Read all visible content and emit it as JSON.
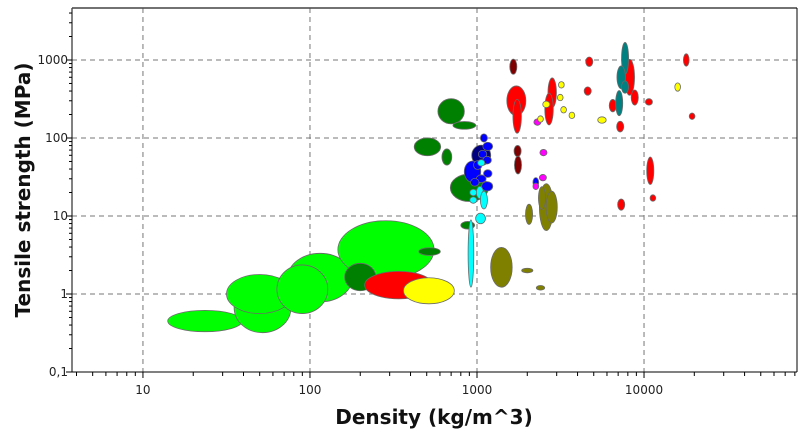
{
  "chart_data": {
    "type": "scatter",
    "subtype": "ashby-bubble",
    "title": "",
    "xlabel": "Density (kg/m^3)",
    "ylabel": "Tensile strength (MPa)",
    "xscale": "log",
    "yscale": "log",
    "xlim": [
      3.76,
      82400
    ],
    "ylim": [
      0.1,
      4640
    ],
    "x_ticks": [
      10,
      100,
      1000,
      10000
    ],
    "x_tick_labels": [
      "10",
      "100",
      "1000",
      "10000"
    ],
    "y_ticks": [
      0.1,
      1,
      10,
      100,
      1000
    ],
    "y_tick_labels": [
      "0,1",
      "1",
      "10",
      "100",
      "1000"
    ],
    "grid": true,
    "legend": "none",
    "colors": {
      "foam_light": "#00ff00",
      "natural_dark": "#008000",
      "polymer_blue": "#0000ff",
      "navy": "#000080",
      "cyan": "#00ffff",
      "maroon": "#800000",
      "red": "#ff0000",
      "yellow": "#ffff00",
      "magenta": "#ff00ff",
      "olive": "#808000",
      "teal": "#008080"
    },
    "bubbles": [
      {
        "x": 23.5,
        "y": 0.45,
        "xf": 1.67,
        "yf": 1.37,
        "color": "#00ff00"
      },
      {
        "x": 52,
        "y": 0.67,
        "xf": 1.48,
        "yf": 2.1,
        "color": "#00ff00"
      },
      {
        "x": 50,
        "y": 1.0,
        "xf": 1.58,
        "yf": 1.78,
        "color": "#00ff00"
      },
      {
        "x": 115,
        "y": 1.62,
        "xf": 1.56,
        "yf": 2.05,
        "color": "#00ff00"
      },
      {
        "x": 90,
        "y": 1.15,
        "xf": 1.42,
        "yf": 2.05,
        "color": "#00ff00"
      },
      {
        "x": 285,
        "y": 3.7,
        "xf": 1.94,
        "yf": 2.35,
        "color": "#00ff00"
      },
      {
        "x": 200,
        "y": 1.65,
        "xf": 1.24,
        "yf": 1.5,
        "color": "#008000"
      },
      {
        "x": 520,
        "y": 3.5,
        "xf": 1.16,
        "yf": 1.12,
        "color": "#008000"
      },
      {
        "x": 340,
        "y": 1.3,
        "xf": 1.6,
        "yf": 1.5,
        "color": "#ff0000"
      },
      {
        "x": 515,
        "y": 1.1,
        "xf": 1.42,
        "yf": 1.47,
        "color": "#ffff00"
      },
      {
        "x": 700,
        "y": 220,
        "xf": 1.2,
        "yf": 1.45,
        "color": "#008000"
      },
      {
        "x": 840,
        "y": 145,
        "xf": 1.17,
        "yf": 1.12,
        "color": "#008000"
      },
      {
        "x": 505,
        "y": 77,
        "xf": 1.2,
        "yf": 1.3,
        "color": "#008000"
      },
      {
        "x": 660,
        "y": 57,
        "xf": 1.07,
        "yf": 1.27,
        "color": "#008000"
      },
      {
        "x": 900,
        "y": 23,
        "xf": 1.3,
        "yf": 1.5,
        "color": "#008000"
      },
      {
        "x": 880,
        "y": 7.6,
        "xf": 1.1,
        "yf": 1.12,
        "color": "#008000"
      },
      {
        "x": 1060,
        "y": 60,
        "xf": 1.14,
        "yf": 1.35,
        "color": "#000080"
      },
      {
        "x": 940,
        "y": 37,
        "xf": 1.12,
        "yf": 1.37,
        "color": "#0000ff"
      },
      {
        "x": 1100,
        "y": 100,
        "xf": 1.05,
        "yf": 1.13,
        "color": "#0000ff"
      },
      {
        "x": 1160,
        "y": 78,
        "xf": 1.07,
        "yf": 1.13,
        "color": "#0000ff"
      },
      {
        "x": 1080,
        "y": 62,
        "xf": 1.06,
        "yf": 1.12,
        "color": "#0000ff"
      },
      {
        "x": 1150,
        "y": 52,
        "xf": 1.06,
        "yf": 1.12,
        "color": "#0000ff"
      },
      {
        "x": 1010,
        "y": 45,
        "xf": 1.06,
        "yf": 1.14,
        "color": "#0000ff"
      },
      {
        "x": 1160,
        "y": 35,
        "xf": 1.06,
        "yf": 1.12,
        "color": "#0000ff"
      },
      {
        "x": 1060,
        "y": 30,
        "xf": 1.07,
        "yf": 1.12,
        "color": "#0000ff"
      },
      {
        "x": 1150,
        "y": 24,
        "xf": 1.08,
        "yf": 1.15,
        "color": "#0000ff"
      },
      {
        "x": 970,
        "y": 27,
        "xf": 1.06,
        "yf": 1.12,
        "color": "#0000ff"
      },
      {
        "x": 1060,
        "y": 48,
        "xf": 1.05,
        "yf": 1.1,
        "color": "#00ffff"
      },
      {
        "x": 950,
        "y": 20,
        "xf": 1.05,
        "yf": 1.1,
        "color": "#00ffff"
      },
      {
        "x": 950,
        "y": 16,
        "xf": 1.05,
        "yf": 1.1,
        "color": "#00ffff"
      },
      {
        "x": 1040,
        "y": 20,
        "xf": 1.05,
        "yf": 1.2,
        "color": "#00ffff"
      },
      {
        "x": 1100,
        "y": 16,
        "xf": 1.05,
        "yf": 1.3,
        "color": "#00ffff"
      },
      {
        "x": 1050,
        "y": 9.3,
        "xf": 1.07,
        "yf": 1.17,
        "color": "#00ffff"
      },
      {
        "x": 920,
        "y": 3.3,
        "xf": 1.04,
        "yf": 2.7,
        "color": "#00ffff"
      },
      {
        "x": 1650,
        "y": 820,
        "xf": 1.05,
        "yf": 1.25,
        "color": "#800000"
      },
      {
        "x": 1750,
        "y": 68,
        "xf": 1.05,
        "yf": 1.18,
        "color": "#800000"
      },
      {
        "x": 1760,
        "y": 45,
        "xf": 1.05,
        "yf": 1.3,
        "color": "#800000"
      },
      {
        "x": 1720,
        "y": 300,
        "xf": 1.14,
        "yf": 1.55,
        "color": "#ff0000"
      },
      {
        "x": 1740,
        "y": 190,
        "xf": 1.06,
        "yf": 1.65,
        "color": "#ff0000"
      },
      {
        "x": 2820,
        "y": 380,
        "xf": 1.06,
        "yf": 1.55,
        "color": "#ff0000"
      },
      {
        "x": 2700,
        "y": 235,
        "xf": 1.06,
        "yf": 1.6,
        "color": "#ff0000"
      },
      {
        "x": 2300,
        "y": 160,
        "xf": 1.05,
        "yf": 1.1,
        "color": "#ff00ff"
      },
      {
        "x": 2500,
        "y": 65,
        "xf": 1.05,
        "yf": 1.1,
        "color": "#ff00ff"
      },
      {
        "x": 2480,
        "y": 31,
        "xf": 1.05,
        "yf": 1.1,
        "color": "#ff00ff"
      },
      {
        "x": 2250,
        "y": 27,
        "xf": 1.04,
        "yf": 1.15,
        "color": "#0000ff"
      },
      {
        "x": 2250,
        "y": 24,
        "xf": 1.04,
        "yf": 1.1,
        "color": "#ff00ff"
      },
      {
        "x": 3200,
        "y": 480,
        "xf": 1.04,
        "yf": 1.1,
        "color": "#ffff00"
      },
      {
        "x": 3150,
        "y": 330,
        "xf": 1.04,
        "yf": 1.1,
        "color": "#ffff00"
      },
      {
        "x": 2600,
        "y": 270,
        "xf": 1.05,
        "yf": 1.1,
        "color": "#ffff00"
      },
      {
        "x": 3300,
        "y": 230,
        "xf": 1.04,
        "yf": 1.1,
        "color": "#ffff00"
      },
      {
        "x": 3700,
        "y": 195,
        "xf": 1.04,
        "yf": 1.1,
        "color": "#ffff00"
      },
      {
        "x": 2400,
        "y": 175,
        "xf": 1.04,
        "yf": 1.1,
        "color": "#ffff00"
      },
      {
        "x": 5600,
        "y": 170,
        "xf": 1.06,
        "yf": 1.1,
        "color": "#ffff00"
      },
      {
        "x": 15900,
        "y": 450,
        "xf": 1.04,
        "yf": 1.13,
        "color": "#ffff00"
      },
      {
        "x": 1400,
        "y": 2.2,
        "xf": 1.16,
        "yf": 1.8,
        "color": "#808000"
      },
      {
        "x": 2000,
        "y": 2.0,
        "xf": 1.08,
        "yf": 1.07,
        "color": "#808000"
      },
      {
        "x": 2400,
        "y": 1.2,
        "xf": 1.06,
        "yf": 1.07,
        "color": "#808000"
      },
      {
        "x": 2050,
        "y": 10.5,
        "xf": 1.05,
        "yf": 1.35,
        "color": "#808000"
      },
      {
        "x": 2600,
        "y": 13,
        "xf": 1.1,
        "yf": 2.0,
        "color": "#808000"
      },
      {
        "x": 2800,
        "y": 13,
        "xf": 1.08,
        "yf": 1.6,
        "color": "#808000"
      },
      {
        "x": 2450,
        "y": 17,
        "xf": 1.05,
        "yf": 1.4,
        "color": "#808000"
      },
      {
        "x": 4700,
        "y": 950,
        "xf": 1.05,
        "yf": 1.15,
        "color": "#ff0000"
      },
      {
        "x": 4600,
        "y": 400,
        "xf": 1.05,
        "yf": 1.13,
        "color": "#ff0000"
      },
      {
        "x": 6500,
        "y": 260,
        "xf": 1.05,
        "yf": 1.2,
        "color": "#ff0000"
      },
      {
        "x": 7200,
        "y": 140,
        "xf": 1.05,
        "yf": 1.17,
        "color": "#ff0000"
      },
      {
        "x": 8200,
        "y": 600,
        "xf": 1.07,
        "yf": 1.7,
        "color": "#ff0000"
      },
      {
        "x": 8800,
        "y": 330,
        "xf": 1.05,
        "yf": 1.25,
        "color": "#ff0000"
      },
      {
        "x": 10700,
        "y": 290,
        "xf": 1.05,
        "yf": 1.1,
        "color": "#ff0000"
      },
      {
        "x": 17900,
        "y": 1000,
        "xf": 1.04,
        "yf": 1.2,
        "color": "#ff0000"
      },
      {
        "x": 19400,
        "y": 190,
        "xf": 1.04,
        "yf": 1.1,
        "color": "#ff0000"
      },
      {
        "x": 10900,
        "y": 38,
        "xf": 1.05,
        "yf": 1.5,
        "color": "#ff0000"
      },
      {
        "x": 11300,
        "y": 17,
        "xf": 1.04,
        "yf": 1.1,
        "color": "#ff0000"
      },
      {
        "x": 7300,
        "y": 14,
        "xf": 1.05,
        "yf": 1.18,
        "color": "#ff0000"
      },
      {
        "x": 7700,
        "y": 1050,
        "xf": 1.05,
        "yf": 1.6,
        "color": "#008080"
      },
      {
        "x": 7300,
        "y": 600,
        "xf": 1.06,
        "yf": 1.4,
        "color": "#008080"
      },
      {
        "x": 7700,
        "y": 450,
        "xf": 1.05,
        "yf": 1.2,
        "color": "#008080"
      },
      {
        "x": 7100,
        "y": 280,
        "xf": 1.05,
        "yf": 1.45,
        "color": "#008080"
      }
    ]
  }
}
